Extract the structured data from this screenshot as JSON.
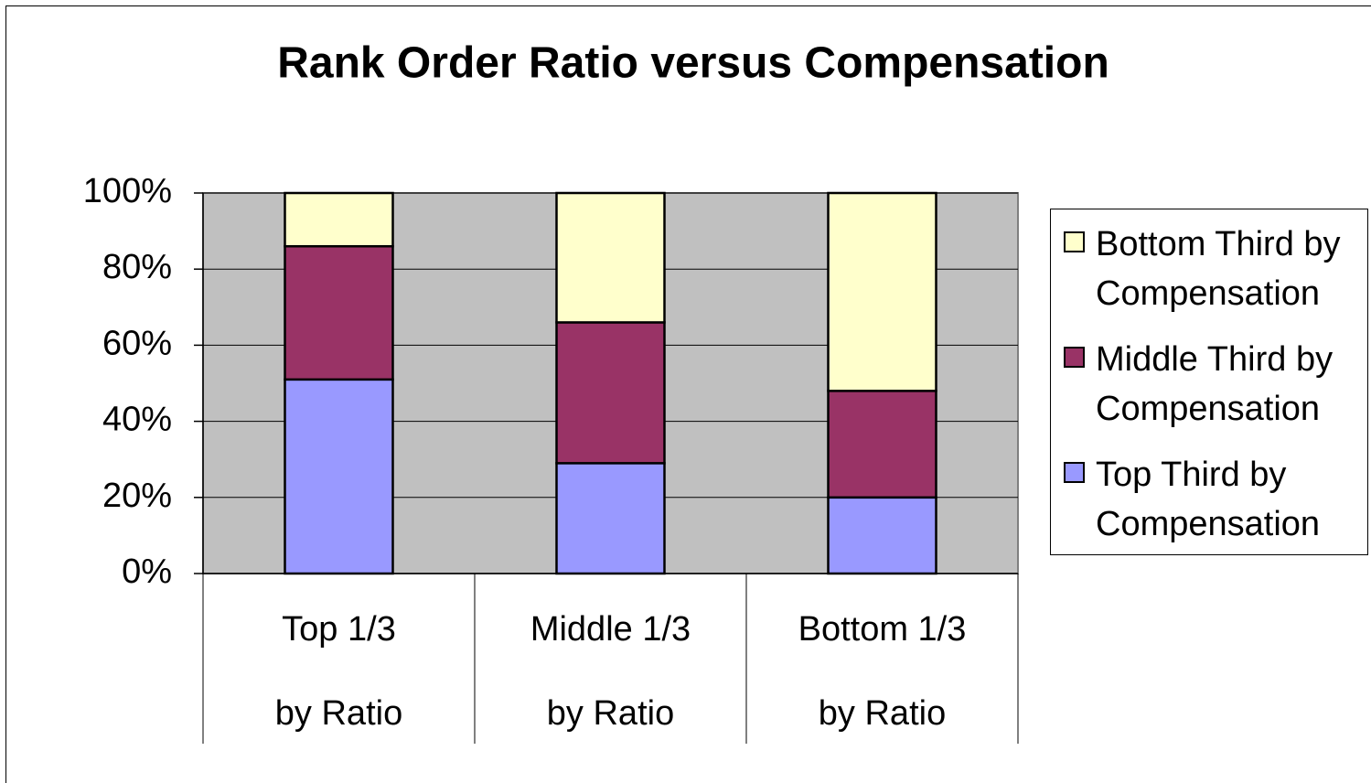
{
  "chart_data": {
    "type": "stacked_bar",
    "title": "Rank Order Ratio versus Compensation",
    "categories": [
      [
        "Top 1/3",
        "by Ratio"
      ],
      [
        "Middle 1/3",
        "by Ratio"
      ],
      [
        "Bottom 1/3",
        "by Ratio"
      ]
    ],
    "series": [
      {
        "name": "Top Third by Compensation",
        "color": "#9999ff",
        "values": [
          51,
          29,
          20
        ]
      },
      {
        "name": "Middle Third by Compensation",
        "color": "#993366",
        "values": [
          35,
          37,
          28
        ]
      },
      {
        "name": "Bottom Third by Compensation",
        "color": "#ffffcc",
        "values": [
          14,
          34,
          52
        ]
      }
    ],
    "ylim": [
      0,
      100
    ],
    "yticks": [
      {
        "value": 0,
        "label": "0%"
      },
      {
        "value": 20,
        "label": "20%"
      },
      {
        "value": 40,
        "label": "40%"
      },
      {
        "value": 60,
        "label": "60%"
      },
      {
        "value": 80,
        "label": "80%"
      },
      {
        "value": 100,
        "label": "100%"
      }
    ],
    "grid": true,
    "legend": "right"
  }
}
